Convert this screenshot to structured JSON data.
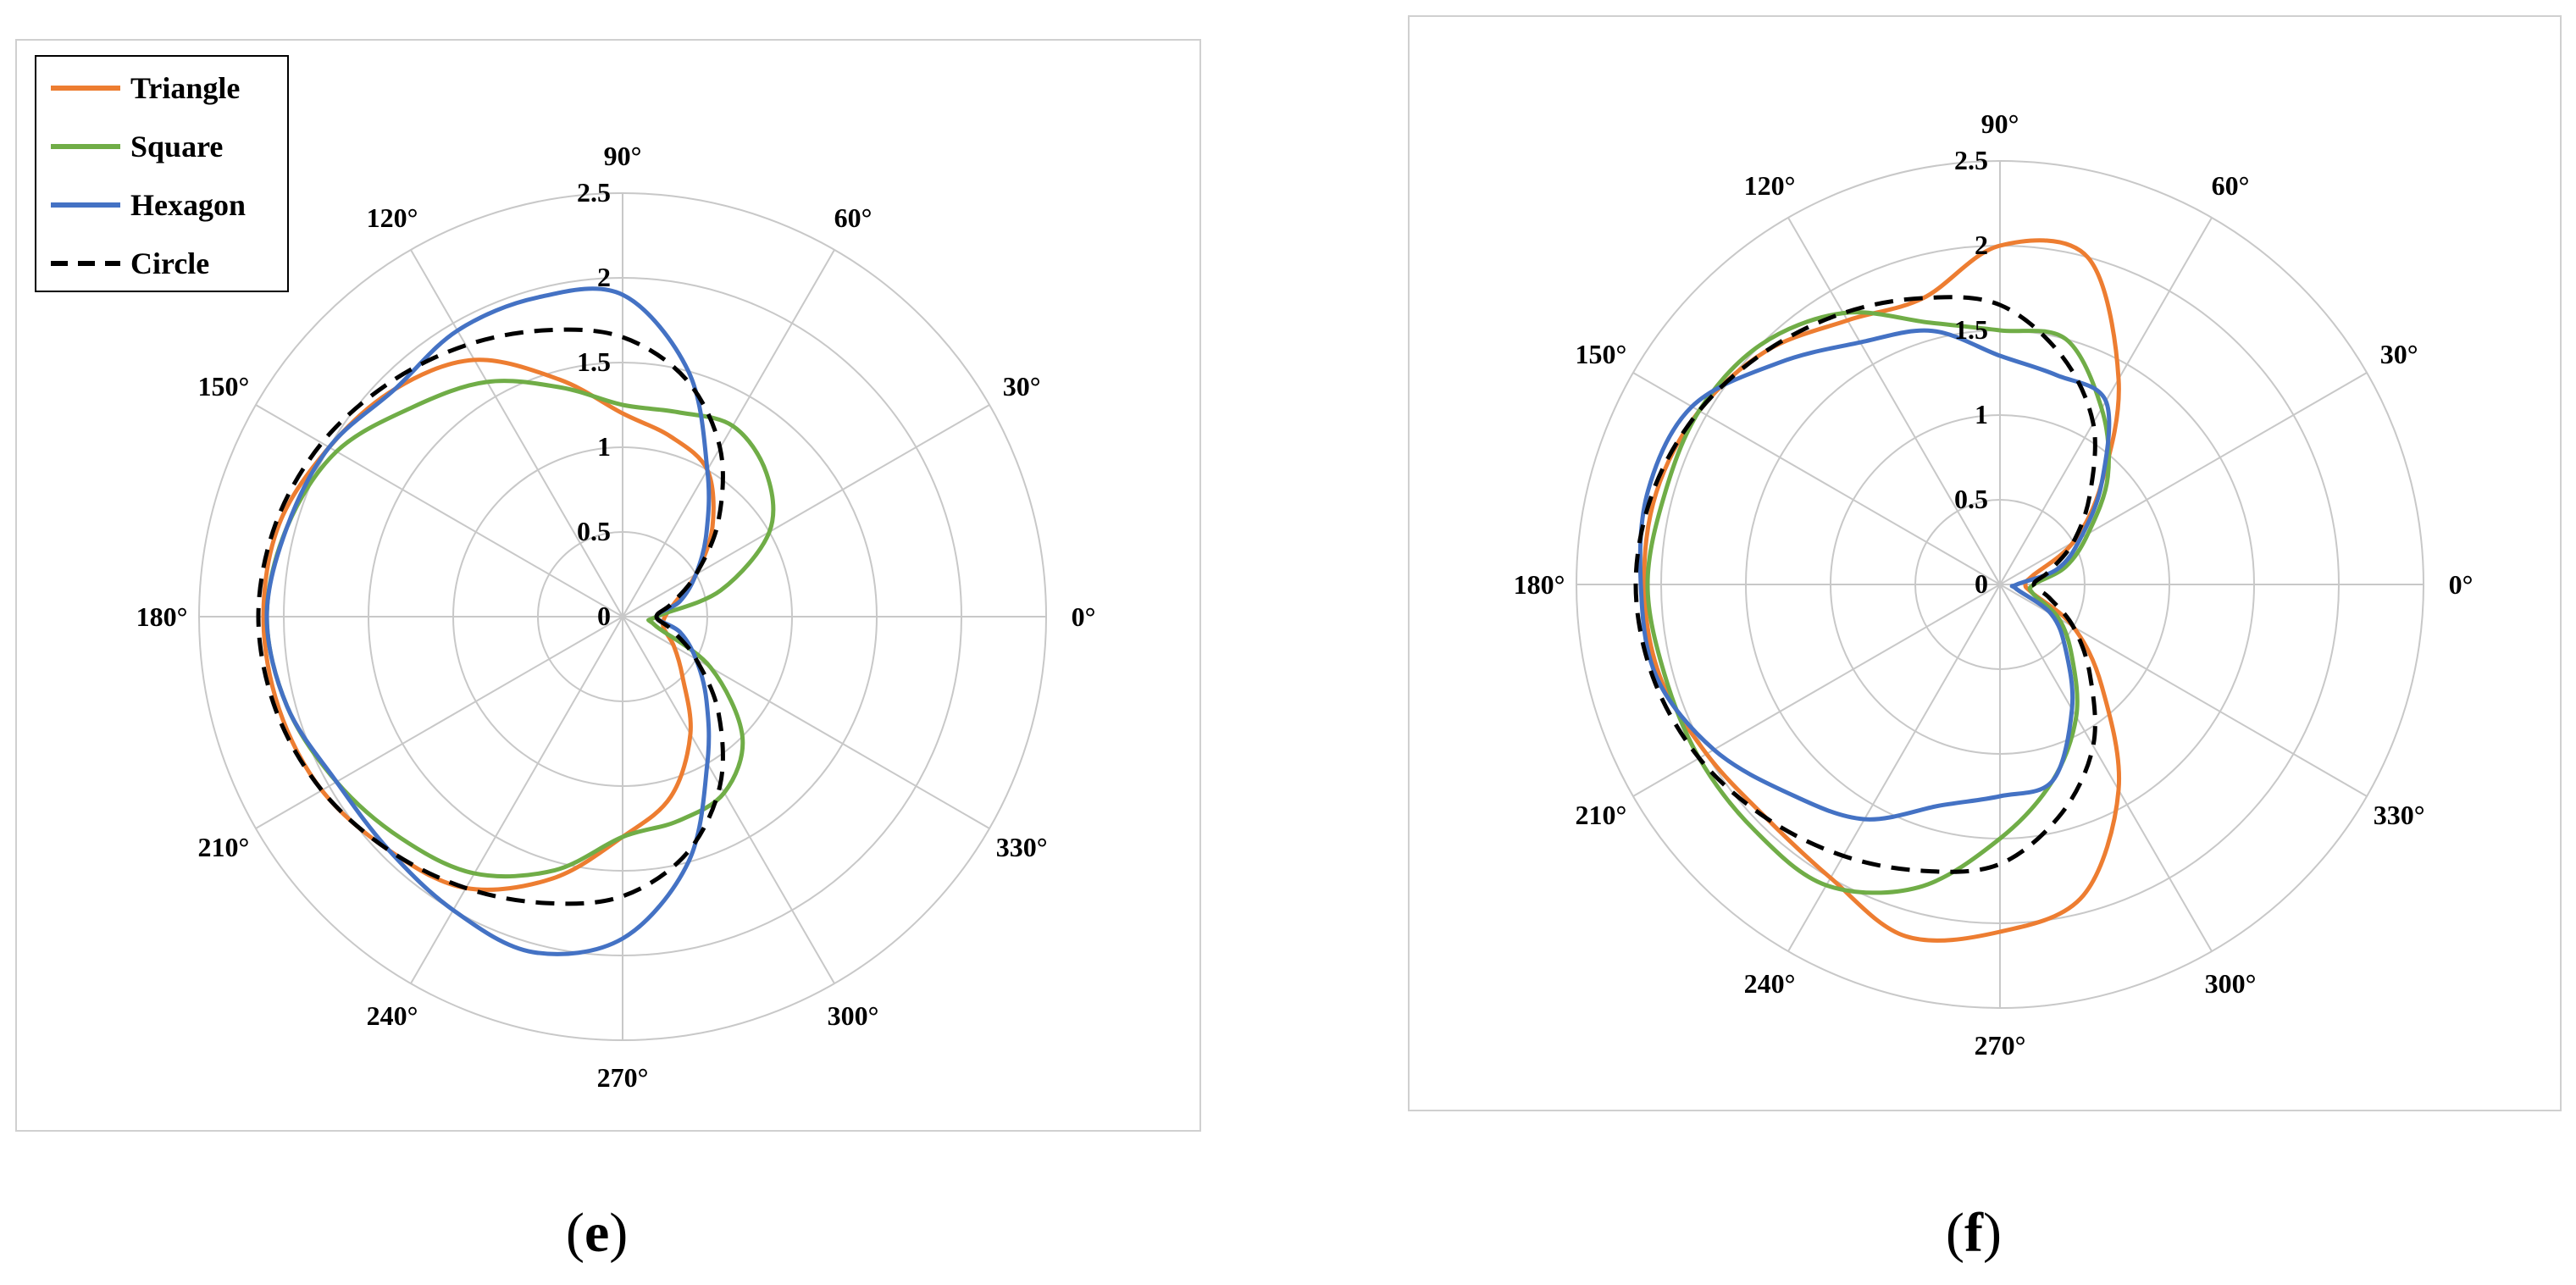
{
  "legend": {
    "items": [
      {
        "label": "Triangle",
        "color": "#ED7D31",
        "dash": false
      },
      {
        "label": "Square",
        "color": "#70AD47",
        "dash": false
      },
      {
        "label": "Hexagon",
        "color": "#4472C4",
        "dash": false
      },
      {
        "label": "Circle",
        "color": "#000000",
        "dash": true
      }
    ]
  },
  "captions": {
    "e": "e",
    "f": "f"
  },
  "chart_data": [
    {
      "type": "polar-line",
      "panel": "e",
      "radial_ticks": [
        "0",
        "0.5",
        "1",
        "1.5",
        "2",
        "2.5"
      ],
      "rlim": [
        0,
        2.5
      ],
      "angle_ticks": [
        "0°",
        "30°",
        "60°",
        "90°",
        "120°",
        "150°",
        "180°",
        "210°",
        "240°",
        "270°",
        "300°",
        "330°"
      ],
      "angles": [
        0,
        15,
        30,
        45,
        60,
        75,
        90,
        105,
        120,
        135,
        150,
        165,
        180,
        195,
        210,
        225,
        240,
        255,
        270,
        285,
        300,
        315,
        330,
        345
      ],
      "series": [
        {
          "name": "Triangle",
          "values": [
            0.25,
            0.32,
            0.5,
            0.75,
            1.0,
            1.1,
            1.2,
            1.45,
            1.75,
            1.9,
            2.0,
            2.1,
            2.12,
            2.1,
            2.05,
            1.95,
            1.85,
            1.6,
            1.3,
            1.1,
            0.8,
            0.5,
            0.35,
            0.25
          ]
        },
        {
          "name": "Square",
          "values": [
            0.2,
            0.6,
            1.0,
            1.2,
            1.3,
            1.25,
            1.25,
            1.4,
            1.6,
            1.75,
            1.95,
            2.05,
            2.1,
            2.05,
            1.95,
            1.85,
            1.75,
            1.55,
            1.3,
            1.25,
            1.2,
            1.0,
            0.6,
            0.2
          ]
        },
        {
          "name": "Hexagon",
          "values": [
            0.2,
            0.35,
            0.5,
            0.7,
            1.0,
            1.5,
            1.9,
            1.95,
            1.95,
            1.9,
            2.0,
            2.05,
            2.1,
            2.05,
            1.95,
            1.95,
            2.0,
            2.05,
            1.9,
            1.5,
            1.0,
            0.7,
            0.5,
            0.35
          ]
        },
        {
          "name": "Circle",
          "values": [
            0.2,
            0.3,
            0.5,
            0.8,
            1.15,
            1.45,
            1.65,
            1.75,
            1.85,
            1.95,
            2.05,
            2.12,
            2.15,
            2.12,
            2.05,
            1.95,
            1.85,
            1.75,
            1.65,
            1.45,
            1.15,
            0.8,
            0.5,
            0.3
          ]
        }
      ]
    },
    {
      "type": "polar-line",
      "panel": "f",
      "radial_ticks": [
        "0",
        "0.5",
        "1",
        "1.5",
        "2",
        "2.5"
      ],
      "rlim": [
        0,
        2.5
      ],
      "angle_ticks": [
        "0°",
        "30°",
        "60°",
        "90°",
        "120°",
        "150°",
        "180°",
        "210°",
        "240°",
        "270°",
        "300°",
        "330°"
      ],
      "angles": [
        0,
        15,
        30,
        45,
        60,
        75,
        90,
        105,
        120,
        135,
        150,
        165,
        180,
        195,
        210,
        225,
        240,
        255,
        270,
        285,
        300,
        315,
        330,
        345
      ],
      "series": [
        {
          "name": "Triangle",
          "values": [
            0.15,
            0.2,
            0.5,
            0.85,
            1.4,
            2.0,
            2.0,
            1.75,
            1.8,
            1.95,
            2.05,
            2.1,
            2.1,
            2.08,
            2.0,
            1.95,
            2.0,
            2.15,
            2.05,
            1.9,
            1.4,
            0.85,
            0.5,
            0.2
          ]
        },
        {
          "name": "Square",
          "values": [
            0.2,
            0.4,
            0.6,
            0.9,
            1.2,
            1.5,
            1.5,
            1.6,
            1.85,
            2.0,
            2.05,
            2.05,
            2.08,
            2.05,
            2.05,
            2.05,
            2.05,
            1.85,
            1.5,
            1.2,
            0.9,
            0.6,
            0.4,
            0.2
          ]
        },
        {
          "name": "Hexagon",
          "values": [
            0.1,
            0.35,
            0.55,
            0.85,
            1.25,
            1.28,
            1.35,
            1.55,
            1.65,
            1.85,
            2.1,
            2.15,
            2.12,
            2.1,
            1.95,
            1.75,
            1.6,
            1.35,
            1.25,
            1.2,
            0.85,
            0.55,
            0.35,
            0.1
          ]
        },
        {
          "name": "Circle",
          "values": [
            0.2,
            0.3,
            0.5,
            0.75,
            1.1,
            1.4,
            1.65,
            1.75,
            1.85,
            1.95,
            2.05,
            2.12,
            2.15,
            2.12,
            2.05,
            1.95,
            1.85,
            1.75,
            1.65,
            1.4,
            1.1,
            0.75,
            0.5,
            0.3
          ]
        }
      ]
    }
  ]
}
